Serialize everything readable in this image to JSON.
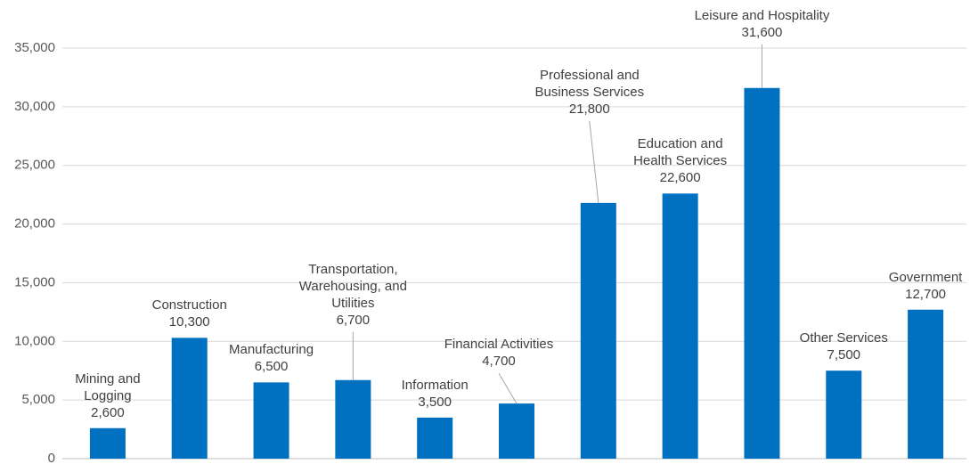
{
  "chart_data": {
    "type": "bar",
    "categories": [
      "Mining and Logging",
      "Construction",
      "Manufacturing",
      "Transportation, Warehousing, and Utilities",
      "Information",
      "Financial Activities",
      "Professional and Business Services",
      "Education and Health Services",
      "Leisure and Hospitality",
      "Other Services",
      "Government"
    ],
    "values": [
      2600,
      10300,
      6500,
      6700,
      3500,
      4700,
      21800,
      22600,
      31600,
      7500,
      12700
    ],
    "value_labels": [
      "2,600",
      "10,300",
      "6,500",
      "6,700",
      "3,500",
      "4,700",
      "21,800",
      "22,600",
      "31,600",
      "7,500",
      "12,700"
    ],
    "color": "#0070c0",
    "ylim": [
      0,
      35000
    ],
    "yticks": [
      0,
      {
        "value": 5000,
        "label": "5,000"
      },
      {
        "value": 10000,
        "label": "10,000"
      },
      {
        "value": 15000,
        "label": "15,000"
      },
      {
        "value": 20000,
        "label": "20,000"
      },
      {
        "value": 25000,
        "label": "25,000"
      },
      {
        "value": 30000,
        "label": "30,000"
      },
      {
        "value": 35000,
        "label": "35,000"
      }
    ],
    "grid": true
  }
}
